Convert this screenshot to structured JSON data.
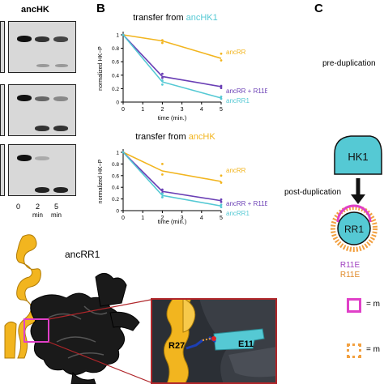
{
  "panels": {
    "A": "",
    "B": "B",
    "C": "C"
  },
  "gels": {
    "header": "ancHK",
    "header_color": "#f2b51f",
    "lane_labels": [
      "0",
      "2",
      "5"
    ],
    "lane_units": [
      "",
      "min",
      "min"
    ]
  },
  "chart_data": [
    {
      "type": "line",
      "title_prefix": "transfer from ",
      "title_highlight": "ancHK1",
      "title_highlight_color": "#55c9d4",
      "xlabel": "time (min.)",
      "ylabel": "normalized HK~P",
      "x_ticks": [
        0,
        1,
        2,
        3,
        4,
        5
      ],
      "y_ticks": [
        0,
        0.2,
        0.4,
        0.6,
        0.8,
        1
      ],
      "xlim": [
        0,
        5
      ],
      "ylim": [
        0,
        1
      ],
      "series": [
        {
          "name": "ancRR",
          "color": "#f2b51f",
          "x": [
            0,
            2,
            5
          ],
          "y": [
            1.0,
            0.91,
            0.65
          ],
          "points": [
            [
              0,
              1.0
            ],
            [
              2,
              0.92
            ],
            [
              2,
              0.88
            ],
            [
              5,
              0.72
            ],
            [
              5,
              0.62
            ]
          ]
        },
        {
          "name": "ancRR + R11E",
          "color": "#6a3fb5",
          "x": [
            0,
            2,
            5
          ],
          "y": [
            1.0,
            0.38,
            0.23
          ],
          "points": [
            [
              0,
              1.0
            ],
            [
              2,
              0.42
            ],
            [
              2,
              0.36
            ],
            [
              5,
              0.24
            ],
            [
              5,
              0.21
            ]
          ]
        },
        {
          "name": "ancRR1",
          "color": "#55c9d4",
          "x": [
            0,
            2,
            5
          ],
          "y": [
            1.0,
            0.3,
            0.06
          ],
          "points": [
            [
              0,
              1.0
            ],
            [
              2,
              0.32
            ],
            [
              2,
              0.26
            ],
            [
              5,
              0.08
            ],
            [
              5,
              0.05
            ]
          ]
        }
      ]
    },
    {
      "type": "line",
      "title_prefix": "transfer from ",
      "title_highlight": "ancHK",
      "title_highlight_color": "#f2b51f",
      "xlabel": "time (min.)",
      "ylabel": "normalized HK~P",
      "x_ticks": [
        0,
        1,
        2,
        3,
        4,
        5
      ],
      "y_ticks": [
        0,
        0.2,
        0.4,
        0.6,
        0.8,
        1
      ],
      "xlim": [
        0,
        5
      ],
      "ylim": [
        0,
        1
      ],
      "series": [
        {
          "name": "ancRR",
          "color": "#f2b51f",
          "x": [
            0,
            2,
            5
          ],
          "y": [
            1.0,
            0.68,
            0.5
          ],
          "points": [
            [
              0,
              1.0
            ],
            [
              2,
              0.8
            ],
            [
              2,
              0.62
            ],
            [
              5,
              0.6
            ],
            [
              5,
              0.48
            ]
          ]
        },
        {
          "name": "ancRR + R11E",
          "color": "#6a3fb5",
          "x": [
            0,
            2,
            5
          ],
          "y": [
            1.0,
            0.33,
            0.17
          ],
          "points": [
            [
              0,
              1.0
            ],
            [
              2,
              0.36
            ],
            [
              2,
              0.3
            ],
            [
              5,
              0.19
            ],
            [
              5,
              0.15
            ]
          ]
        },
        {
          "name": "ancRR1",
          "color": "#55c9d4",
          "x": [
            0,
            2,
            5
          ],
          "y": [
            1.0,
            0.26,
            0.08
          ],
          "points": [
            [
              0,
              1.0
            ],
            [
              2,
              0.29
            ],
            [
              2,
              0.23
            ],
            [
              5,
              0.1
            ],
            [
              5,
              0.06
            ]
          ]
        }
      ]
    }
  ],
  "structure": {
    "label": "ancRR1",
    "residues": [
      "R27",
      "E11"
    ],
    "helix_color": "#f2b51f",
    "protein_color": "#1a1a1a",
    "zoom_border_color": "#b0262a",
    "highlight_color": "#e040c8"
  },
  "diagram": {
    "pre_label": "pre-duplication",
    "post_label": "post-duplication",
    "hk_label": "HK1",
    "rr_label": "RR1",
    "mutation_1": "R11E",
    "mutation_2": "R11E",
    "mutation_1_color": "#a040c0",
    "mutation_2_color": "#e08a2a",
    "legend_1": "= m",
    "legend_2": "= m",
    "legend_1_color": "#e040c8",
    "legend_2_color": "#f2a040",
    "cyan": "#55c9d4"
  }
}
